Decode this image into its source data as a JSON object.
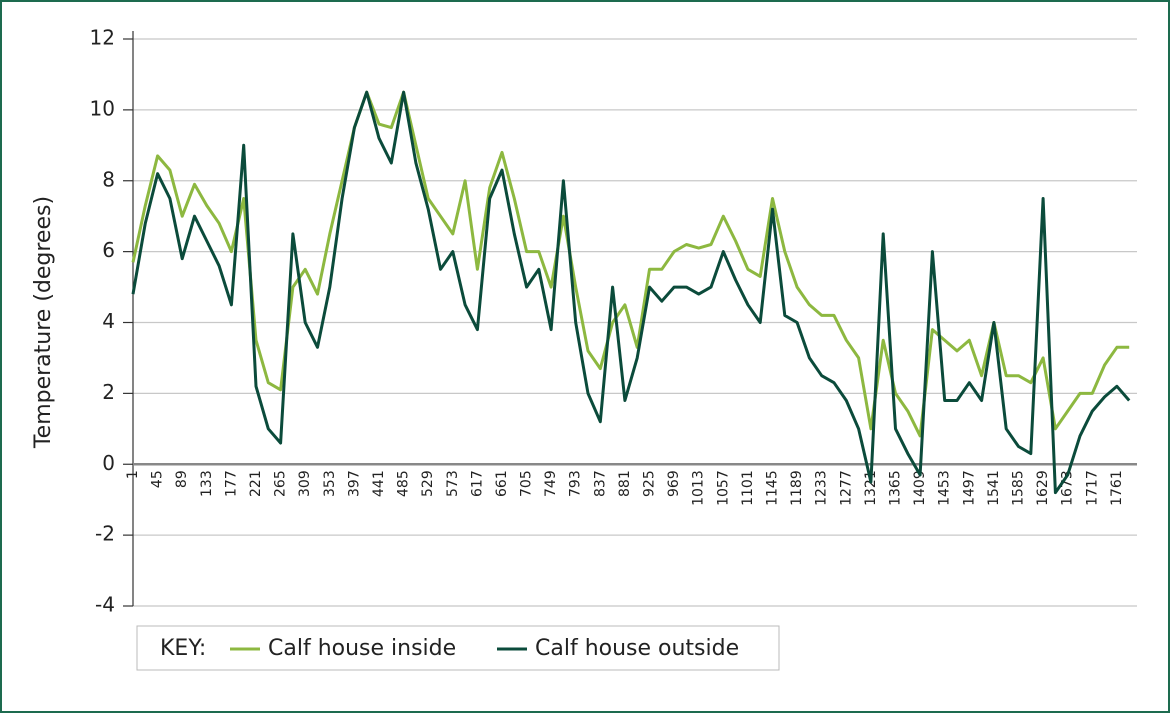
{
  "chart_data": {
    "type": "line",
    "y_label": "Temperature (degrees)",
    "legend_title": "KEY:",
    "x": [
      1,
      23,
      45,
      67,
      89,
      111,
      133,
      155,
      177,
      199,
      221,
      243,
      265,
      287,
      309,
      331,
      353,
      375,
      397,
      419,
      441,
      463,
      485,
      507,
      529,
      551,
      573,
      595,
      617,
      639,
      661,
      683,
      705,
      727,
      749,
      771,
      793,
      815,
      837,
      859,
      881,
      903,
      925,
      947,
      969,
      991,
      1013,
      1035,
      1057,
      1079,
      1101,
      1123,
      1145,
      1167,
      1189,
      1211,
      1233,
      1255,
      1277,
      1299,
      1321,
      1343,
      1365,
      1387,
      1409,
      1431,
      1453,
      1475,
      1497,
      1519,
      1541,
      1563,
      1585,
      1607,
      1629,
      1651,
      1673,
      1695,
      1717,
      1739,
      1761,
      1783
    ],
    "series": [
      {
        "name": "Calf house inside",
        "color": "#8db840",
        "values": [
          5.7,
          7.3,
          8.7,
          8.3,
          7.0,
          7.9,
          7.3,
          6.8,
          6.0,
          7.5,
          3.5,
          2.3,
          2.1,
          5.0,
          5.5,
          4.8,
          6.5,
          8.0,
          9.5,
          10.5,
          9.6,
          9.5,
          10.5,
          9.0,
          7.5,
          7.0,
          6.5,
          8.0,
          5.5,
          7.8,
          8.8,
          7.5,
          6.0,
          6.0,
          5.0,
          7.0,
          5.0,
          3.2,
          2.7,
          4.0,
          4.5,
          3.3,
          5.5,
          5.5,
          6.0,
          6.2,
          6.1,
          6.2,
          7.0,
          6.3,
          5.5,
          5.3,
          7.5,
          6.0,
          5.0,
          4.5,
          4.2,
          4.2,
          3.5,
          3.0,
          1.0,
          3.5,
          2.0,
          1.5,
          0.8,
          3.8,
          3.5,
          3.2,
          3.5,
          2.5,
          4.0,
          2.5,
          2.5,
          2.3,
          3.0,
          1.0,
          1.5,
          2.0,
          2.0,
          2.8,
          3.3,
          3.3
        ]
      },
      {
        "name": "Calf house outside",
        "color": "#0b4b3b",
        "values": [
          4.8,
          6.8,
          8.2,
          7.5,
          5.8,
          7.0,
          6.3,
          5.6,
          4.5,
          9.0,
          2.2,
          1.0,
          0.6,
          6.5,
          4.0,
          3.3,
          5.0,
          7.5,
          9.5,
          10.5,
          9.2,
          8.5,
          10.5,
          8.5,
          7.2,
          5.5,
          6.0,
          4.5,
          3.8,
          7.5,
          8.3,
          6.5,
          5.0,
          5.5,
          3.8,
          8.0,
          4.0,
          2.0,
          1.2,
          5.0,
          1.8,
          3.0,
          5.0,
          4.6,
          5.0,
          5.0,
          4.8,
          5.0,
          6.0,
          5.2,
          4.5,
          4.0,
          7.2,
          4.2,
          4.0,
          3.0,
          2.5,
          2.3,
          1.8,
          1.0,
          -0.5,
          6.5,
          1.0,
          0.3,
          -0.3,
          6.0,
          1.8,
          1.8,
          2.3,
          1.8,
          4.0,
          1.0,
          0.5,
          0.3,
          7.5,
          -0.8,
          -0.3,
          0.8,
          1.5,
          1.9,
          2.2,
          1.8
        ]
      }
    ],
    "xlim": [
      1,
      1797
    ],
    "xticks": [
      1,
      45,
      89,
      133,
      177,
      221,
      265,
      309,
      353,
      397,
      441,
      485,
      529,
      573,
      617,
      661,
      705,
      749,
      793,
      837,
      881,
      925,
      969,
      1013,
      1057,
      1101,
      1145,
      1189,
      1233,
      1277,
      1321,
      1365,
      1409,
      1453,
      1497,
      1541,
      1585,
      1629,
      1673,
      1717,
      1761
    ],
    "ylim": [
      -4,
      12
    ],
    "yticks": [
      -4,
      -2,
      0,
      2,
      4,
      6,
      8,
      10,
      12
    ],
    "grid": true
  }
}
